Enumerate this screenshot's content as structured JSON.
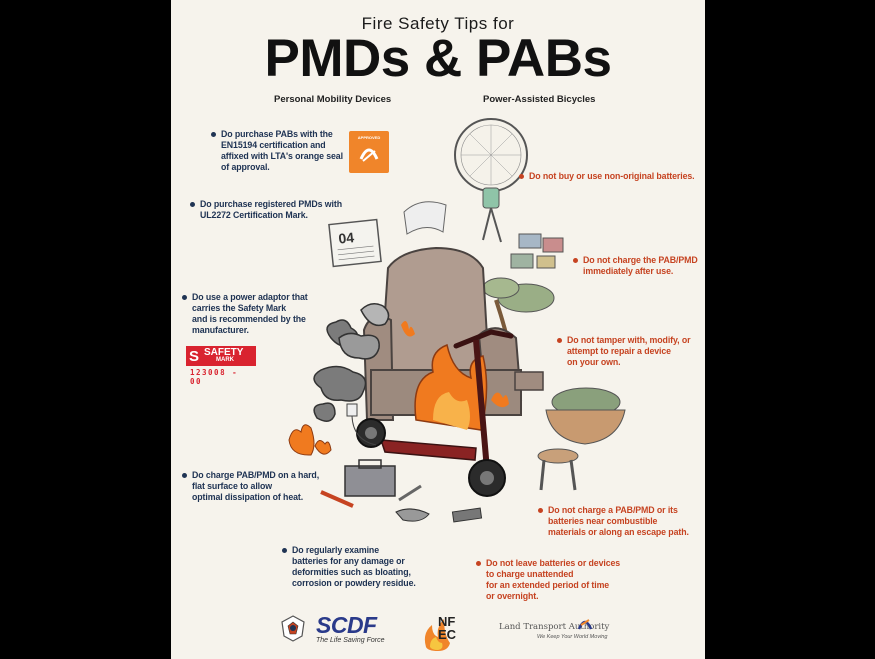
{
  "header": {
    "title_small": "Fire Safety Tips for",
    "title_big": "PMDs & PABs",
    "subtitle_left": "Personal Mobility Devices",
    "subtitle_right": "Power-Assisted Bicycles"
  },
  "tips_do": [
    {
      "lines": [
        "Do purchase PABs with the",
        "EN15194 certification and",
        "affixed with LTA's orange seal",
        "of approval."
      ]
    },
    {
      "lines": [
        "Do purchase registered PMDs with",
        "UL2272 Certification Mark."
      ]
    },
    {
      "lines": [
        "Do use a power adaptor that",
        "carries the Safety Mark",
        "and is recommended by the",
        "manufacturer."
      ]
    },
    {
      "lines": [
        "Do charge PAB/PMD on a hard,",
        "flat surface to allow",
        "optimal dissipation of heat."
      ]
    },
    {
      "lines": [
        "Do regularly examine",
        "batteries for any damage or",
        "deformities such as bloating,",
        "corrosion or powdery residue."
      ]
    }
  ],
  "tips_dont": [
    {
      "lines": [
        "Do not buy or use non-original batteries."
      ]
    },
    {
      "lines": [
        "Do not charge the PAB/PMD",
        "immediately after use."
      ]
    },
    {
      "lines": [
        "Do not tamper with, modify, or",
        "attempt to repair a device",
        "on your own."
      ]
    },
    {
      "lines": [
        "Do not charge a PAB/PMD or its",
        "batteries near combustible",
        "materials or along an escape path."
      ]
    },
    {
      "lines": [
        "Do not leave batteries or devices",
        "to charge unattended",
        "for an extended period of time",
        "or overnight."
      ]
    }
  ],
  "badges": {
    "lta_seal_text": "APPROVED",
    "safety_mark_label": "SAFETY",
    "safety_mark_sub": "MARK",
    "safety_mark_code": "123008 - 00"
  },
  "footer": {
    "scdf_name": "SCDF",
    "scdf_tagline": "The Life Saving Force",
    "nfec_name": "NFEC",
    "lta_name": "Land Transport Authority",
    "lta_tagline": "We Keep Your World Moving"
  },
  "colors": {
    "do_text": "#203454",
    "dont_text": "#c64321",
    "background": "#f6f3ec",
    "fire": "#f07a1f",
    "safety_mark": "#d9232f",
    "lta_orange": "#f0852a"
  },
  "illustration": {
    "description_icons": [
      "fan-icon",
      "calendar-icon",
      "armchair-icon",
      "scooter-icon",
      "fire-icon",
      "smoke-icon",
      "bonsai-icon",
      "basket-icon",
      "stool-icon",
      "toolbox-icon",
      "charger-icon",
      "paintings-icon"
    ],
    "calendar_date": "04"
  }
}
